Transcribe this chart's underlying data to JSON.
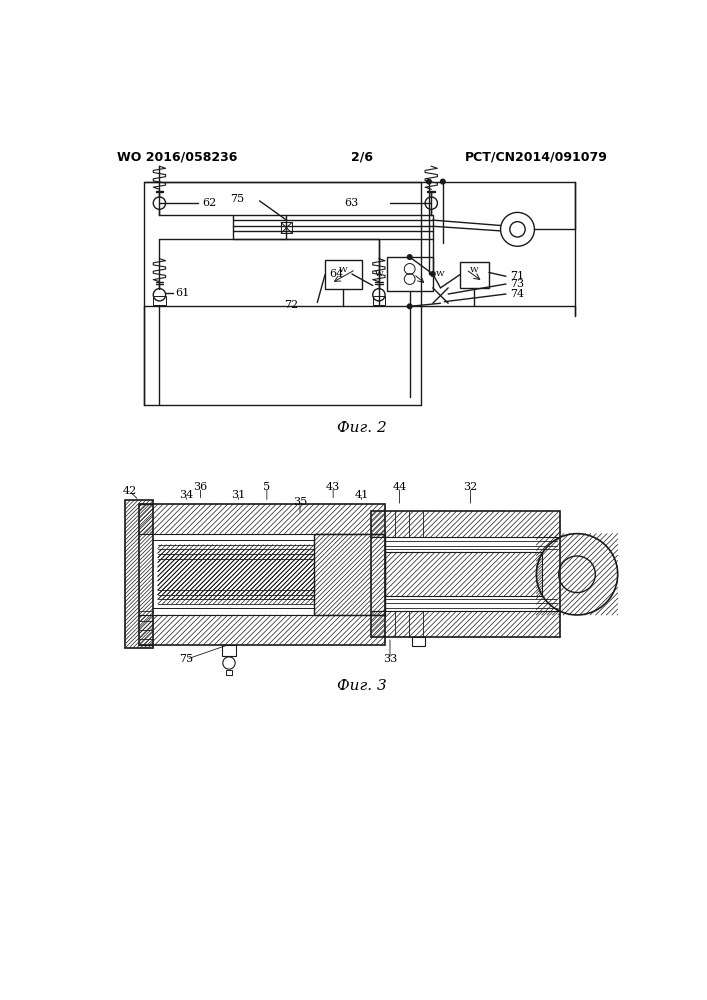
{
  "title_left": "WO 2016/058236",
  "title_right": "PCT/CN2014/091079",
  "page_num": "2/6",
  "fig2_label": "Фиг. 2",
  "fig3_label": "Фиг. 3",
  "bg_color": "#ffffff",
  "line_color": "#1a1a1a"
}
